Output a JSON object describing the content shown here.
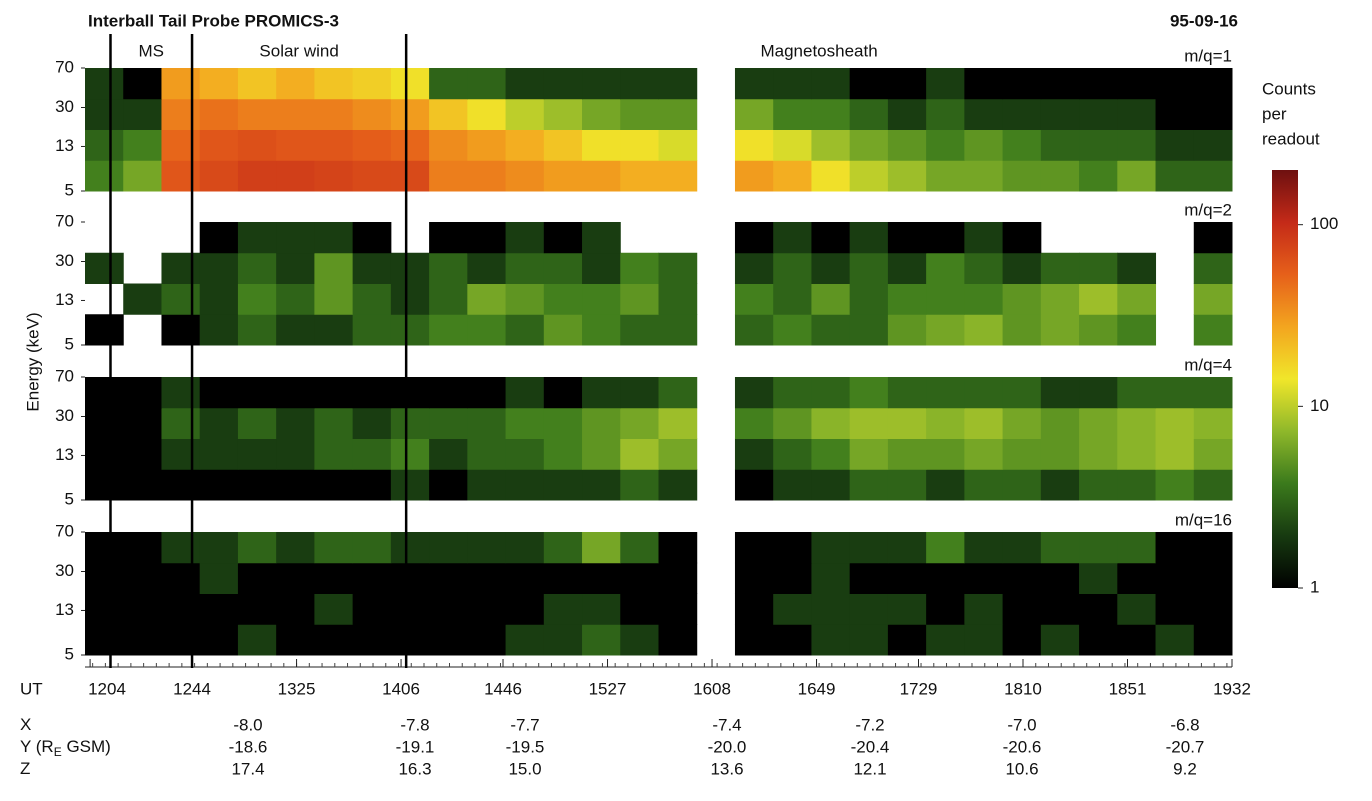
{
  "chart_data": {
    "type": "heatmap",
    "title": "Interball Tail Probe PROMICS-3",
    "date": "95-09-16",
    "ylabel": "Energy (keV)",
    "xlabel": "UT",
    "ylim": [
      5,
      70
    ],
    "log_y": true,
    "yticks": [
      5,
      13,
      30,
      70
    ],
    "xlim": [
      722,
      1172
    ],
    "xticks": [
      {
        "value": 724,
        "label": "1204"
      },
      {
        "value": 764,
        "label": "1244"
      },
      {
        "value": 805,
        "label": "1325"
      },
      {
        "value": 846,
        "label": "1406"
      },
      {
        "value": 886,
        "label": "1446"
      },
      {
        "value": 927,
        "label": "1527"
      },
      {
        "value": 968,
        "label": "1608"
      },
      {
        "value": 1009,
        "label": "1649"
      },
      {
        "value": 1049,
        "label": "1729"
      },
      {
        "value": 1090,
        "label": "1810"
      },
      {
        "value": 1131,
        "label": "1851"
      },
      {
        "value": 1172,
        "label": "1932"
      }
    ],
    "regions": [
      {
        "name": "MS",
        "from": 732,
        "to": 764
      },
      {
        "name": "Solar wind",
        "from": 764,
        "to": 848
      },
      {
        "name": "Magnetosheath",
        "from": 848,
        "to": 1172
      }
    ],
    "colorbar": {
      "title": [
        "Counts",
        "per",
        "readout"
      ],
      "zlim": [
        1,
        200
      ],
      "log": true,
      "ticks": [
        1,
        10,
        100
      ],
      "colors": [
        "#000000",
        "#173a10",
        "#3b7a1c",
        "#8fb82a",
        "#f0e62a",
        "#f3a51f",
        "#e6601a",
        "#c42a18",
        "#6e1010"
      ]
    },
    "panels": [
      {
        "label": "m/q=1",
        "values": [
          [
            4,
            6,
            60,
            70,
            80,
            80,
            75,
            70,
            70,
            40,
            40,
            35,
            30,
            30,
            25,
            25,
            null,
            30,
            25,
            15,
            10,
            8,
            6,
            6,
            5,
            5,
            4,
            6,
            3,
            3
          ],
          [
            3,
            4,
            50,
            60,
            65,
            60,
            60,
            55,
            50,
            35,
            30,
            25,
            20,
            15,
            15,
            12,
            null,
            15,
            12,
            8,
            6,
            5,
            4,
            5,
            4,
            3,
            3,
            3,
            2,
            2
          ],
          [
            2,
            2,
            40,
            45,
            40,
            40,
            40,
            35,
            30,
            20,
            15,
            10,
            8,
            6,
            5,
            5,
            null,
            6,
            4,
            4,
            3,
            2,
            3,
            2,
            2,
            2,
            2,
            2,
            1,
            1
          ],
          [
            2,
            1,
            30,
            25,
            20,
            25,
            20,
            18,
            15,
            3,
            3,
            2,
            2,
            2,
            2,
            2,
            null,
            2,
            2,
            2,
            1,
            1,
            2,
            1,
            1,
            1,
            1,
            1,
            1,
            1
          ]
        ]
      },
      {
        "label": "m/q=2",
        "values": [
          [
            1,
            null,
            1,
            2,
            3,
            2,
            2,
            3,
            3,
            4,
            4,
            3,
            5,
            4,
            3,
            3,
            null,
            3,
            4,
            3,
            3,
            5,
            6,
            7,
            5,
            6,
            5,
            4,
            null,
            4
          ],
          [
            null,
            2,
            3,
            2,
            4,
            3,
            5,
            3,
            2,
            3,
            6,
            5,
            4,
            4,
            5,
            3,
            null,
            4,
            3,
            5,
            3,
            4,
            4,
            4,
            5,
            6,
            8,
            6,
            null,
            6
          ],
          [
            2,
            null,
            2,
            2,
            3,
            2,
            5,
            2,
            2,
            3,
            2,
            3,
            3,
            2,
            4,
            3,
            null,
            2,
            3,
            2,
            3,
            2,
            4,
            3,
            2,
            3,
            3,
            2,
            null,
            3
          ],
          [
            null,
            null,
            null,
            1,
            2,
            2,
            2,
            1,
            null,
            1,
            1,
            2,
            1,
            2,
            null,
            null,
            null,
            1,
            2,
            1,
            2,
            1,
            1,
            2,
            1,
            null,
            null,
            null,
            null,
            1
          ]
        ]
      },
      {
        "label": "m/q=4",
        "values": [
          [
            1,
            1,
            1,
            1,
            1,
            1,
            1,
            1,
            2,
            1,
            2,
            2,
            2,
            2,
            3,
            2,
            null,
            1,
            2,
            2,
            3,
            3,
            2,
            3,
            3,
            2,
            3,
            3,
            4,
            3
          ],
          [
            1,
            1,
            2,
            2,
            2,
            2,
            3,
            3,
            4,
            2,
            3,
            3,
            4,
            5,
            8,
            6,
            null,
            2,
            3,
            4,
            6,
            5,
            5,
            6,
            5,
            5,
            6,
            7,
            8,
            6
          ],
          [
            1,
            1,
            3,
            2,
            3,
            2,
            3,
            2,
            3,
            3,
            3,
            4,
            4,
            5,
            6,
            8,
            null,
            4,
            5,
            7,
            8,
            8,
            7,
            8,
            6,
            5,
            6,
            7,
            8,
            7
          ],
          [
            1,
            1,
            2,
            1,
            1,
            1,
            1,
            1,
            1,
            1,
            1,
            2,
            1,
            2,
            2,
            3,
            null,
            2,
            3,
            3,
            4,
            3,
            3,
            3,
            3,
            2,
            2,
            3,
            3,
            3
          ]
        ]
      },
      {
        "label": "m/q=16",
        "values": [
          [
            1,
            1,
            1,
            1,
            2,
            1,
            1,
            1,
            1,
            1,
            1,
            2,
            2,
            3,
            2,
            1,
            null,
            1,
            1,
            2,
            2,
            1,
            2,
            2,
            1,
            2,
            1,
            1,
            2,
            1
          ],
          [
            1,
            1,
            1,
            1,
            1,
            1,
            2,
            1,
            1,
            1,
            1,
            1,
            2,
            2,
            1,
            1,
            null,
            1,
            2,
            2,
            2,
            2,
            1,
            2,
            1,
            1,
            1,
            2,
            1,
            1
          ],
          [
            1,
            1,
            1,
            2,
            1,
            1,
            1,
            1,
            1,
            1,
            1,
            1,
            1,
            1,
            1,
            1,
            null,
            1,
            1,
            2,
            1,
            1,
            1,
            1,
            1,
            1,
            2,
            1,
            1,
            1
          ],
          [
            1,
            1,
            2,
            2,
            3,
            2,
            3,
            3,
            2,
            2,
            2,
            2,
            3,
            6,
            3,
            1,
            null,
            1,
            1,
            2,
            2,
            2,
            4,
            2,
            2,
            3,
            3,
            3,
            1,
            1
          ]
        ]
      }
    ],
    "ephemeris": [
      {
        "label": [
          "X"
        ],
        "values": [
          "-8.0",
          "-7.8",
          "-7.7",
          "-7.4",
          "-7.2",
          "-7.0",
          "-6.8"
        ]
      },
      {
        "label": [
          "Y (R",
          "E",
          " GSM)"
        ],
        "values": [
          "-18.6",
          "-19.1",
          "-19.5",
          "-20.0",
          "-20.4",
          "-20.6",
          "-20.7"
        ]
      },
      {
        "label": [
          "Z"
        ],
        "values": [
          "17.4",
          "16.3",
          "15.0",
          "13.6",
          "12.1",
          "10.6",
          "9.2"
        ]
      }
    ]
  }
}
